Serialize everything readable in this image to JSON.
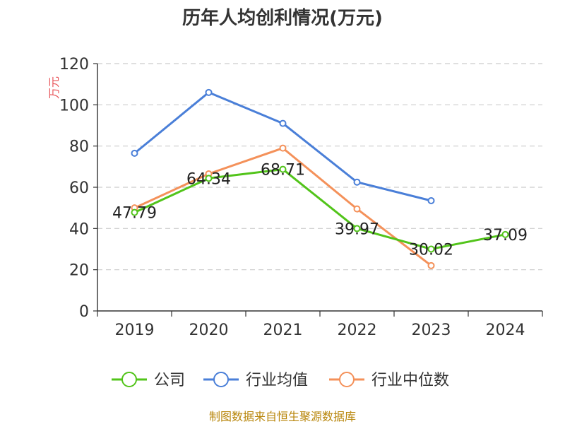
{
  "chart_data": {
    "type": "line",
    "title": "历年人均创利情况(万元)",
    "ylabel": "万元",
    "xlabel": "",
    "categories": [
      "2019",
      "2020",
      "2021",
      "2022",
      "2023",
      "2024"
    ],
    "ylim": [
      0,
      120
    ],
    "yticks": [
      0,
      20,
      40,
      60,
      80,
      100,
      120
    ],
    "grid": true,
    "legend_position": "bottom",
    "series": [
      {
        "name": "公司",
        "color": "#52c41a",
        "values": [
          47.79,
          64.34,
          68.71,
          39.97,
          30.02,
          37.09
        ],
        "labels": [
          "47.79",
          "64.34",
          "68.71",
          "39.97",
          "30.02",
          "37.09"
        ]
      },
      {
        "name": "行业均值",
        "color": "#4a7fd8",
        "values": [
          76.5,
          106.0,
          91.0,
          62.5,
          53.5,
          null
        ]
      },
      {
        "name": "行业中位数",
        "color": "#f4915a",
        "values": [
          50.0,
          66.5,
          79.0,
          49.5,
          22.0,
          null
        ]
      }
    ]
  },
  "footer": {
    "source": "制图数据来自恒生聚源数据库"
  }
}
